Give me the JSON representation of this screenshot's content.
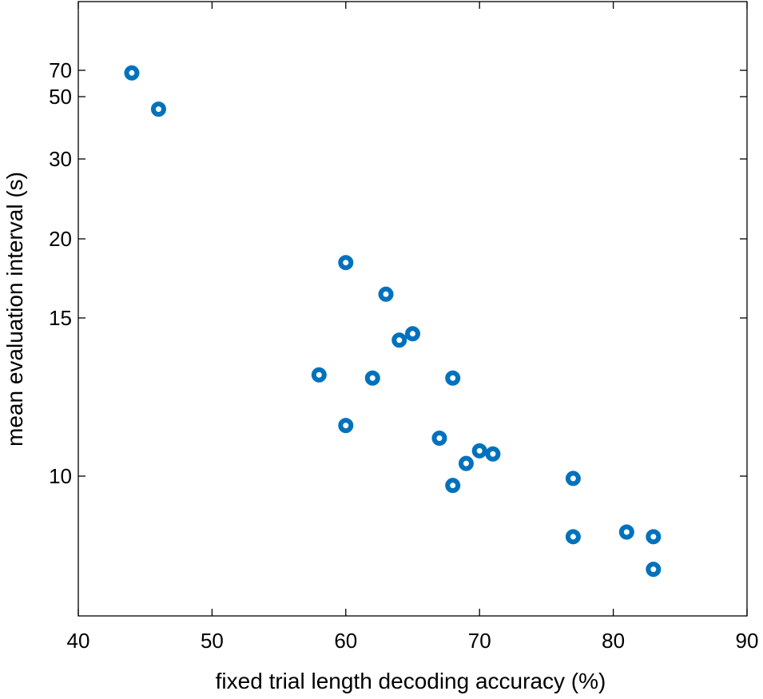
{
  "chart_data": {
    "type": "scatter",
    "xlabel": "fixed trial length decoding accuracy (%)",
    "ylabel": "mean evaluation interval (s)",
    "xlim": [
      40,
      90
    ],
    "x_ticks": [
      40,
      50,
      60,
      70,
      80,
      90
    ],
    "y_ticks": [
      10,
      15,
      20,
      30,
      50,
      70
    ],
    "y_scale": "nonlinear (tick labels 10, 15, 20, 30, 50, 70)",
    "grid": false,
    "marker_color": "#0072BD",
    "points": [
      {
        "x": 44,
        "y": 68
      },
      {
        "x": 46,
        "y": 46
      },
      {
        "x": 58,
        "y": 13.2
      },
      {
        "x": 60,
        "y": 18.5
      },
      {
        "x": 60,
        "y": 11.6
      },
      {
        "x": 62,
        "y": 13.1
      },
      {
        "x": 63,
        "y": 16.5
      },
      {
        "x": 64,
        "y": 14.3
      },
      {
        "x": 65,
        "y": 14.5
      },
      {
        "x": 67,
        "y": 11.2
      },
      {
        "x": 68,
        "y": 13.1
      },
      {
        "x": 68,
        "y": 9.8
      },
      {
        "x": 69,
        "y": 10.4
      },
      {
        "x": 70,
        "y": 10.8
      },
      {
        "x": 71,
        "y": 10.7
      },
      {
        "x": 77,
        "y": 9.95
      },
      {
        "x": 77,
        "y": 8.7
      },
      {
        "x": 81,
        "y": 8.8
      },
      {
        "x": 83,
        "y": 8.7
      },
      {
        "x": 83,
        "y": 8.0
      }
    ]
  }
}
